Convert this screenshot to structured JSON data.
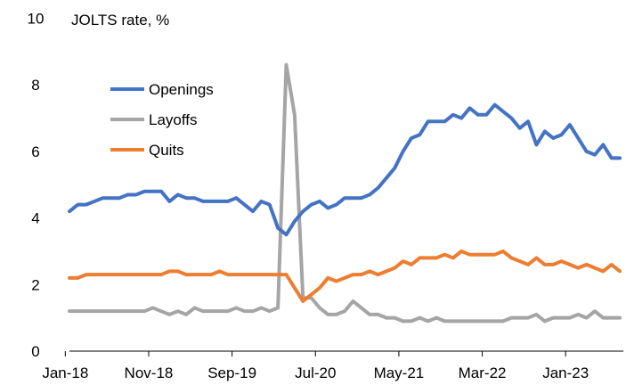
{
  "chart_data": {
    "type": "line",
    "title": "JOLTS rate, %",
    "xlabel": "",
    "ylabel": "",
    "ylim": [
      0,
      10
    ],
    "yticks": [
      0,
      2,
      4,
      6,
      8,
      10
    ],
    "x_tick_labels": [
      "Jan-18",
      "Nov-18",
      "Sep-19",
      "Jul-20",
      "May-21",
      "Mar-22",
      "Jan-23"
    ],
    "x_tick_month_index": [
      0,
      10,
      20,
      30,
      40,
      50,
      60
    ],
    "x_start": "Jan-18",
    "x_frequency": "monthly",
    "grid": false,
    "legend_position": "upper-left",
    "series": [
      {
        "name": "Openings",
        "color": "#4472C4",
        "values": [
          4.2,
          4.4,
          4.4,
          4.5,
          4.6,
          4.6,
          4.6,
          4.7,
          4.7,
          4.8,
          4.8,
          4.8,
          4.5,
          4.7,
          4.6,
          4.6,
          4.5,
          4.5,
          4.5,
          4.5,
          4.6,
          4.4,
          4.2,
          4.5,
          4.4,
          3.7,
          3.5,
          3.9,
          4.2,
          4.4,
          4.5,
          4.3,
          4.4,
          4.6,
          4.6,
          4.6,
          4.7,
          4.9,
          5.2,
          5.5,
          6.0,
          6.4,
          6.5,
          6.9,
          6.9,
          6.9,
          7.1,
          7.0,
          7.3,
          7.1,
          7.1,
          7.4,
          7.2,
          7.0,
          6.7,
          6.9,
          6.2,
          6.6,
          6.4,
          6.5,
          6.8,
          6.4,
          6.0,
          5.9,
          6.2,
          5.8,
          5.8
        ]
      },
      {
        "name": "Layoffs",
        "color": "#A5A5A5",
        "values": [
          1.2,
          1.2,
          1.2,
          1.2,
          1.2,
          1.2,
          1.2,
          1.2,
          1.2,
          1.2,
          1.3,
          1.2,
          1.1,
          1.2,
          1.1,
          1.3,
          1.2,
          1.2,
          1.2,
          1.2,
          1.3,
          1.2,
          1.2,
          1.3,
          1.2,
          1.3,
          8.6,
          7.1,
          1.6,
          1.6,
          1.3,
          1.1,
          1.1,
          1.2,
          1.5,
          1.3,
          1.1,
          1.1,
          1.0,
          1.0,
          0.9,
          0.9,
          1.0,
          0.9,
          1.0,
          0.9,
          0.9,
          0.9,
          0.9,
          0.9,
          0.9,
          0.9,
          0.9,
          1.0,
          1.0,
          1.0,
          1.1,
          0.9,
          1.0,
          1.0,
          1.0,
          1.1,
          1.0,
          1.2,
          1.0,
          1.0,
          1.0
        ]
      },
      {
        "name": "Quits",
        "color": "#ED7D31",
        "values": [
          2.2,
          2.2,
          2.3,
          2.3,
          2.3,
          2.3,
          2.3,
          2.3,
          2.3,
          2.3,
          2.3,
          2.3,
          2.4,
          2.4,
          2.3,
          2.3,
          2.3,
          2.3,
          2.4,
          2.3,
          2.3,
          2.3,
          2.3,
          2.3,
          2.3,
          2.3,
          2.3,
          1.9,
          1.5,
          1.7,
          1.9,
          2.2,
          2.1,
          2.2,
          2.3,
          2.3,
          2.4,
          2.3,
          2.4,
          2.5,
          2.7,
          2.6,
          2.8,
          2.8,
          2.8,
          2.9,
          2.8,
          3.0,
          2.9,
          2.9,
          2.9,
          2.9,
          3.0,
          2.8,
          2.7,
          2.6,
          2.8,
          2.6,
          2.6,
          2.7,
          2.6,
          2.5,
          2.6,
          2.5,
          2.4,
          2.6,
          2.4
        ]
      }
    ]
  }
}
